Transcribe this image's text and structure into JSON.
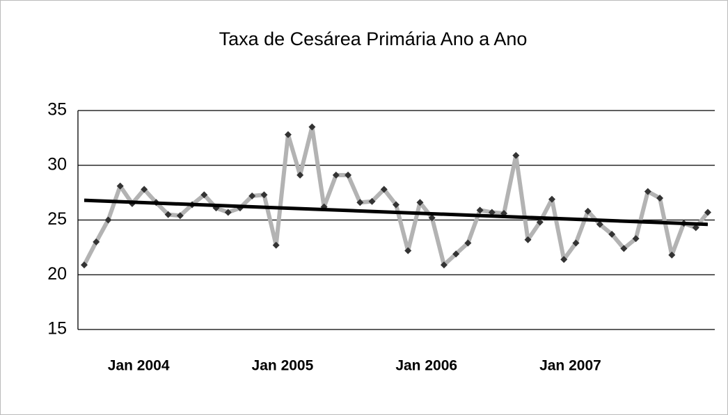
{
  "chart_data": {
    "type": "line",
    "title": "Taxa de Cesárea Primária Ano a Ano",
    "categories": [
      null,
      null,
      null,
      null,
      null,
      "Jan 2004",
      null,
      null,
      null,
      null,
      null,
      null,
      null,
      null,
      null,
      null,
      null,
      "Jan 2005",
      null,
      null,
      null,
      null,
      null,
      null,
      null,
      null,
      null,
      null,
      null,
      "Jan 2006",
      null,
      null,
      null,
      null,
      null,
      null,
      null,
      null,
      null,
      null,
      null,
      "Jan 2007",
      null,
      null,
      null,
      null,
      null,
      null,
      null,
      null,
      null,
      null,
      null
    ],
    "series": [
      {
        "color": "#b3b3b3",
        "marker_color": "#333333",
        "values": [
          20.9,
          23.0,
          25.0,
          28.1,
          26.5,
          27.8,
          26.6,
          25.5,
          25.4,
          26.4,
          27.3,
          26.1,
          25.7,
          26.1,
          27.2,
          27.3,
          22.7,
          32.8,
          29.1,
          33.5,
          26.2,
          29.1,
          29.1,
          26.6,
          26.7,
          27.8,
          26.4,
          22.2,
          26.6,
          25.2,
          20.9,
          21.9,
          22.9,
          25.9,
          25.7,
          25.6,
          30.9,
          23.2,
          24.8,
          26.9,
          21.4,
          22.9,
          25.8,
          24.6,
          23.7,
          22.4,
          23.3,
          27.6,
          27.0,
          21.8,
          24.7,
          24.3,
          25.7
        ]
      }
    ],
    "trendline": {
      "color": "#000000",
      "start": 26.8,
      "end": 24.6
    },
    "ylim": [
      15,
      35
    ],
    "yticks": [
      15,
      20,
      25,
      30,
      35
    ],
    "grid": true
  }
}
